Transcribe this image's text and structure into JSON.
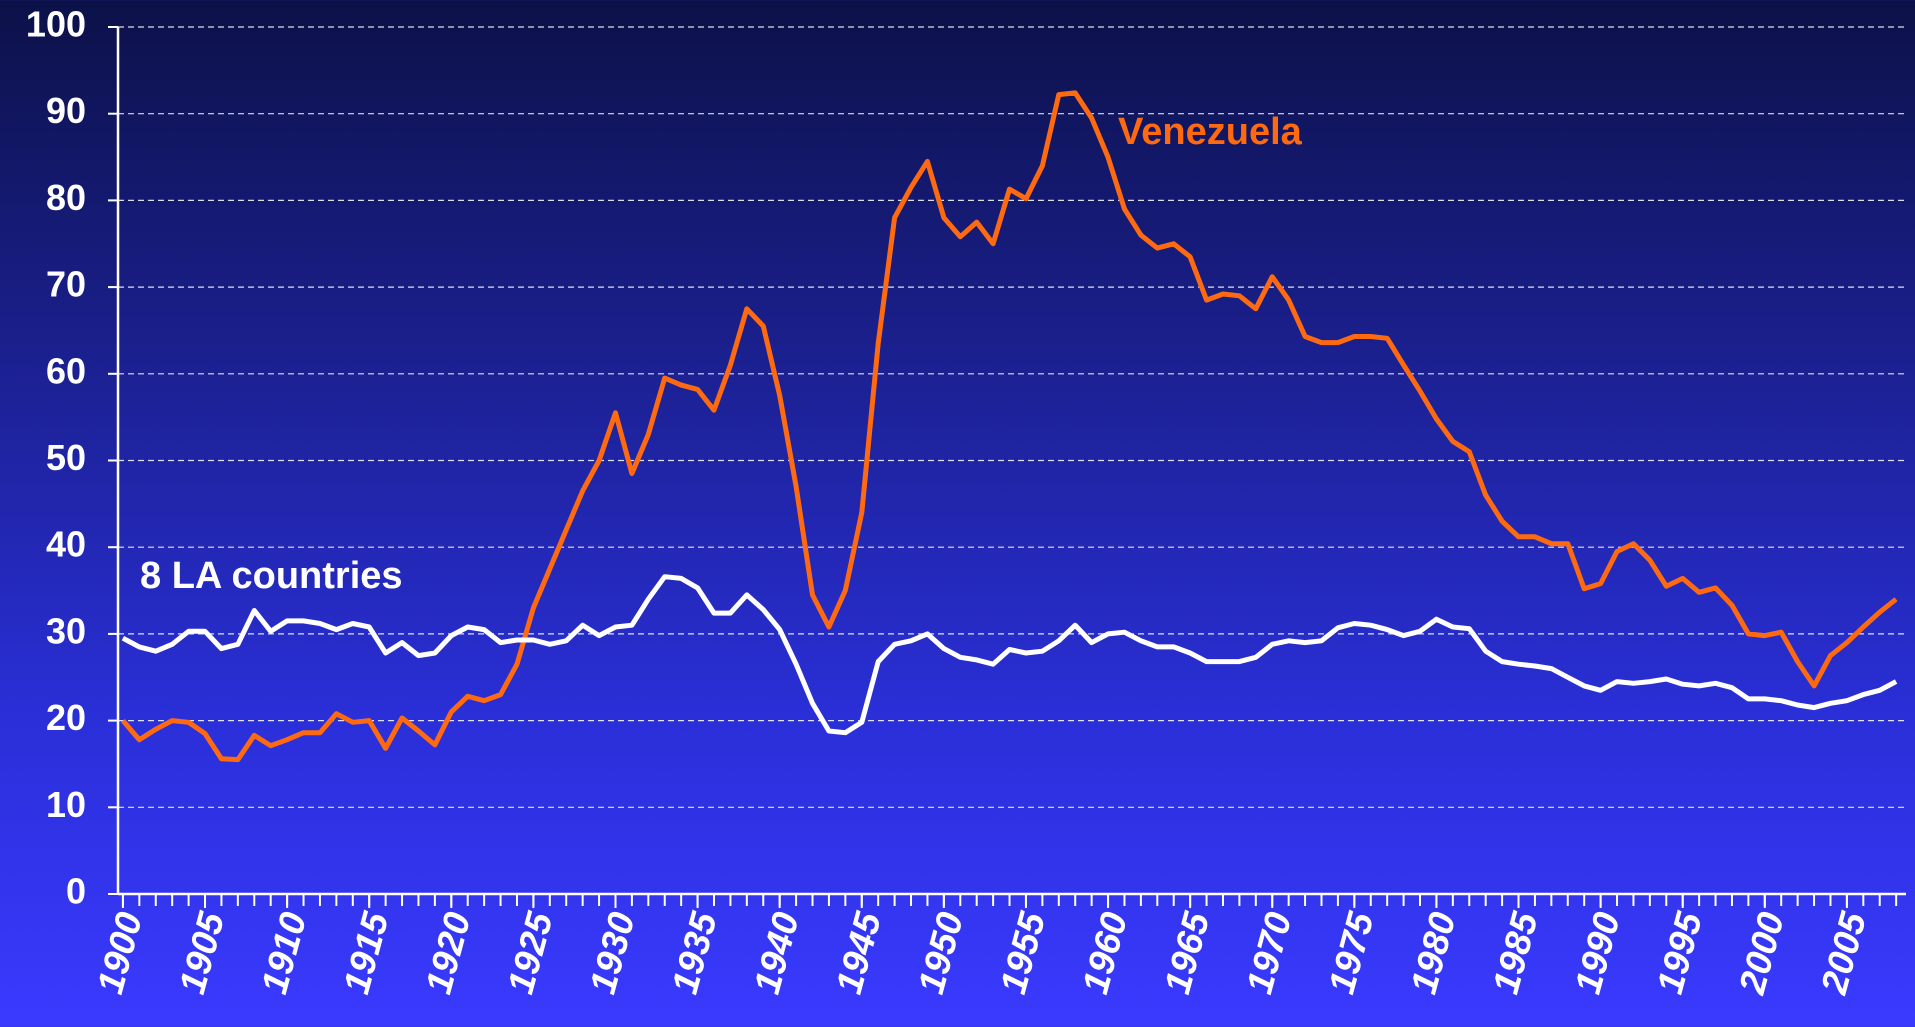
{
  "chart_data": {
    "type": "line",
    "x": [
      1900,
      1901,
      1902,
      1903,
      1904,
      1905,
      1906,
      1907,
      1908,
      1909,
      1910,
      1911,
      1912,
      1913,
      1914,
      1915,
      1916,
      1917,
      1918,
      1919,
      1920,
      1921,
      1922,
      1923,
      1924,
      1925,
      1926,
      1927,
      1928,
      1929,
      1930,
      1931,
      1932,
      1933,
      1934,
      1935,
      1936,
      1937,
      1938,
      1939,
      1940,
      1941,
      1942,
      1943,
      1944,
      1945,
      1946,
      1947,
      1948,
      1949,
      1950,
      1951,
      1952,
      1953,
      1954,
      1955,
      1956,
      1957,
      1958,
      1959,
      1960,
      1961,
      1962,
      1963,
      1964,
      1965,
      1966,
      1967,
      1968,
      1969,
      1970,
      1971,
      1972,
      1973,
      1974,
      1975,
      1976,
      1977,
      1978,
      1979,
      1980,
      1981,
      1982,
      1983,
      1984,
      1985,
      1986,
      1987,
      1988,
      1989,
      1990,
      1991,
      1992,
      1993,
      1994,
      1995,
      1996,
      1997,
      1998,
      1999,
      2000,
      2001,
      2002,
      2003,
      2004,
      2005,
      2006,
      2007,
      2008
    ],
    "series": [
      {
        "name": "Venezuela",
        "color": "#ff6a10",
        "values": [
          20,
          17.8,
          19,
          20,
          19.8,
          18.5,
          15.6,
          15.5,
          18.3,
          17.1,
          17.8,
          18.6,
          18.6,
          20.8,
          19.8,
          20,
          16.8,
          20.3,
          18.8,
          17.2,
          21,
          22.8,
          22.3,
          23,
          26.5,
          33,
          37.5,
          42,
          46.5,
          50,
          55.5,
          48.5,
          53,
          59.5,
          58.7,
          58.2,
          55.8,
          61,
          67.5,
          65.5,
          57.5,
          47,
          34.5,
          30.8,
          35,
          44,
          63.5,
          78,
          81.5,
          84.5,
          78,
          75.8,
          77.5,
          75,
          81.3,
          80.2,
          84,
          92.2,
          92.4,
          89.5,
          85,
          79,
          76,
          74.5,
          75,
          73.5,
          68.5,
          69.2,
          69,
          67.5,
          71.2,
          68.5,
          64.3,
          63.6,
          63.6,
          64.3,
          64.3,
          64.1,
          61,
          58,
          54.8,
          52.2,
          51,
          46,
          43,
          41.2,
          41.2,
          40.4,
          40.4,
          35.2,
          35.8,
          39.5,
          40.4,
          38.5,
          35.5,
          36.4,
          34.8,
          35.3,
          33.3,
          30,
          29.8,
          30.2,
          26.8,
          24,
          27.5,
          29,
          30.8,
          32.5,
          34
        ]
      },
      {
        "name": "8 LA countries",
        "color": "#ffffff",
        "values": [
          29.5,
          28.5,
          28,
          28.8,
          30.3,
          30.3,
          28.3,
          28.8,
          32.7,
          30.3,
          31.5,
          31.5,
          31.2,
          30.5,
          31.2,
          30.8,
          27.8,
          29,
          27.5,
          27.8,
          29.8,
          30.8,
          30.5,
          29,
          29.3,
          29.3,
          28.8,
          29.2,
          31,
          29.8,
          30.8,
          31,
          34,
          36.6,
          36.4,
          35.3,
          32.4,
          32.4,
          34.5,
          32.8,
          30.5,
          26.5,
          22,
          18.8,
          18.6,
          19.8,
          26.8,
          28.8,
          29.2,
          30,
          28.3,
          27.3,
          27,
          26.5,
          28.2,
          27.8,
          28,
          29.2,
          31,
          29,
          30,
          30.2,
          29.2,
          28.5,
          28.5,
          27.8,
          26.8,
          26.8,
          26.8,
          27.3,
          28.8,
          29.2,
          29,
          29.2,
          30.7,
          31.2,
          31,
          30.5,
          29.8,
          30.3,
          31.7,
          30.8,
          30.6,
          28,
          26.8,
          26.5,
          26.3,
          26,
          25,
          24,
          23.5,
          24.5,
          24.3,
          24.5,
          24.8,
          24.2,
          24,
          24.3,
          23.8,
          22.5,
          22.5,
          22.3,
          21.8,
          21.5,
          22,
          22.3,
          23,
          23.5,
          24.5
        ]
      }
    ],
    "xlim": [
      1899.7,
      2008.6
    ],
    "xticks": [
      1900,
      1905,
      1910,
      1915,
      1920,
      1925,
      1930,
      1935,
      1940,
      1945,
      1950,
      1955,
      1960,
      1965,
      1970,
      1975,
      1980,
      1985,
      1990,
      1995,
      2000,
      2005
    ],
    "ylim": [
      0,
      100
    ],
    "yticks": [
      0,
      10,
      20,
      30,
      40,
      50,
      60,
      70,
      80,
      90,
      100
    ],
    "grid": true
  }
}
